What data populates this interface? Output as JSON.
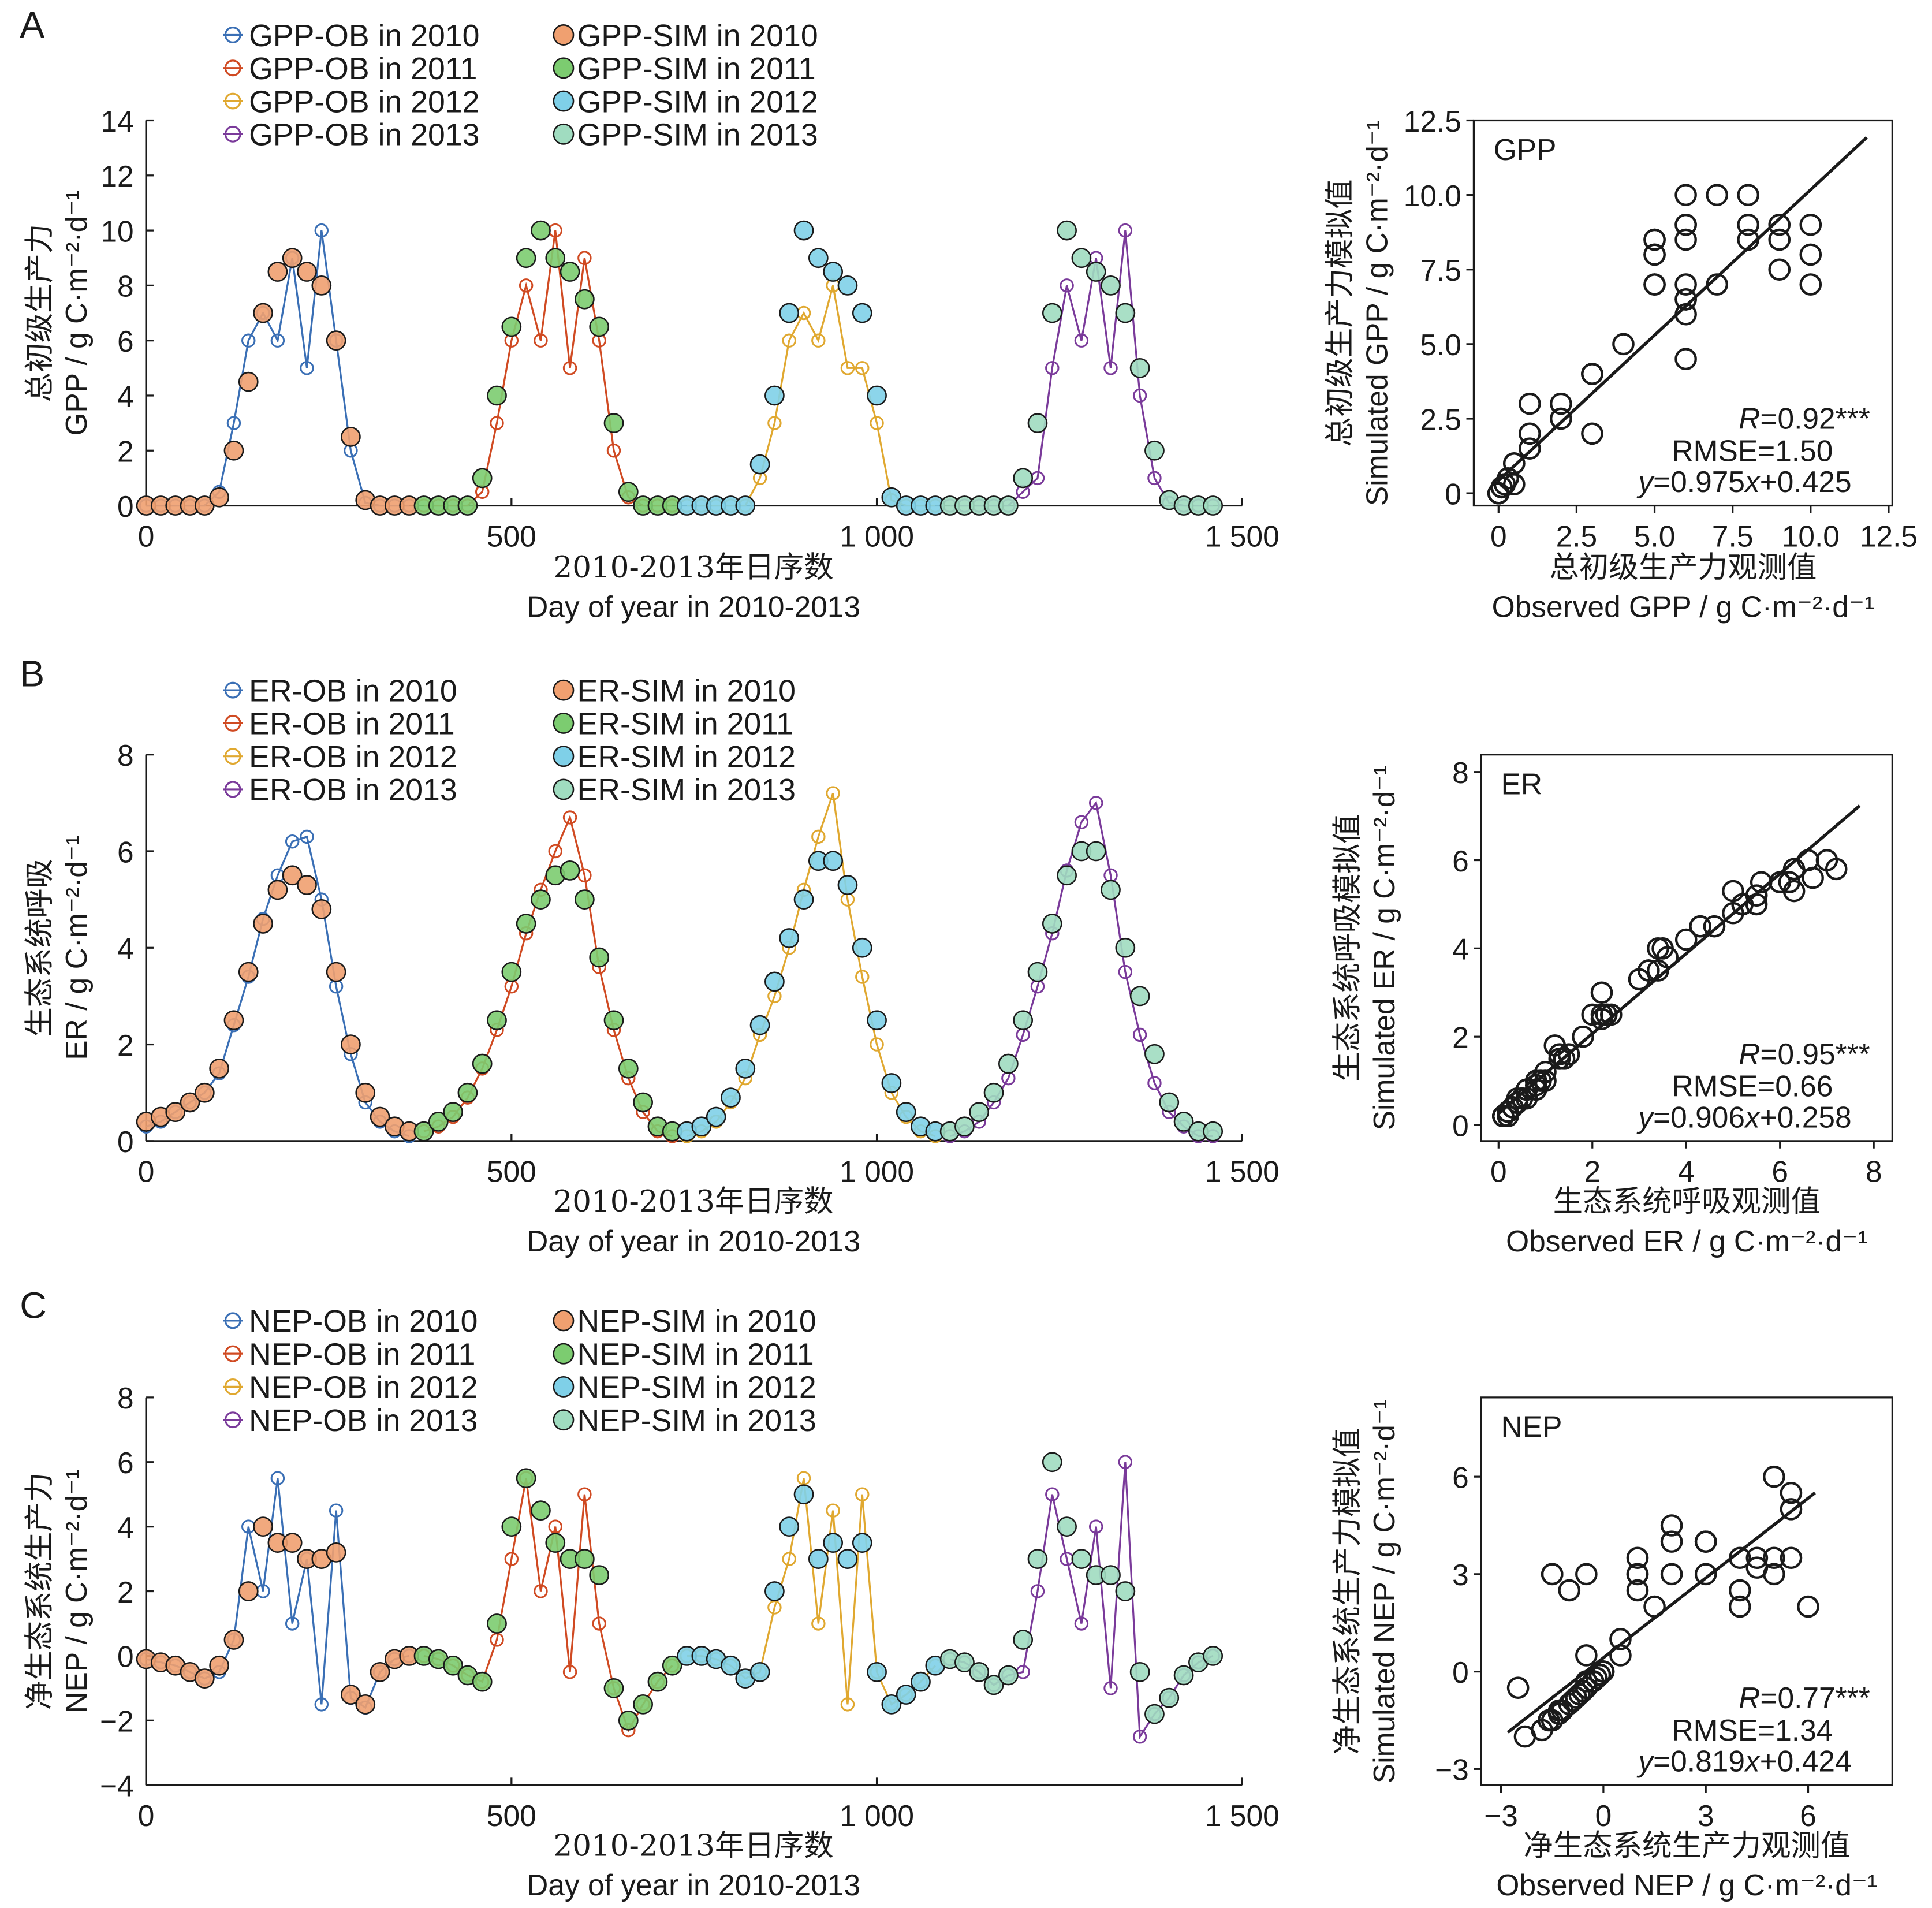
{
  "colors": {
    "ob": [
      "#3a6fb5",
      "#d04a22",
      "#e0a830",
      "#7a3a9a"
    ],
    "sim": [
      "#f0a070",
      "#7ccc70",
      "#7fd0e8",
      "#a0dcc0"
    ],
    "ink": "#1a1a1a"
  },
  "year_breaks": [
    365,
    730,
    1096
  ],
  "chart_data": [
    {
      "type": "line",
      "panel": "A",
      "legend_ob": [
        "GPP-OB in 2010",
        "GPP-OB in 2011",
        "GPP-OB in 2012",
        "GPP-OB in 2013"
      ],
      "legend_sim": [
        "GPP-SIM in 2010",
        "GPP-SIM in 2011",
        "GPP-SIM in 2012",
        "GPP-SIM in 2013"
      ],
      "ylabel_cn": "总初级生产力",
      "ylabel_en": "GPP / g C·m⁻²·d⁻¹",
      "xlabel_cn": "2010-2013年日序数",
      "xlabel_en": "Day of year in 2010-2013",
      "xlim": [
        0,
        1500
      ],
      "ylim": [
        0,
        14
      ],
      "xticks": [
        0,
        500,
        1000,
        1500
      ],
      "xtick_labels": [
        "0",
        "500",
        "1 000",
        "1 500"
      ],
      "yticks": [
        0,
        2,
        4,
        6,
        8,
        10,
        12,
        14
      ],
      "ytick_labels": [
        "0",
        "2",
        "4",
        "6",
        "8",
        "10",
        "12",
        "14"
      ],
      "x_start": 0,
      "x_step": 20,
      "ob": [
        0,
        0,
        0,
        0,
        0,
        0.5,
        3,
        6,
        7,
        6,
        9,
        5,
        10,
        6,
        2,
        0.1,
        0,
        0,
        0,
        0,
        0,
        0,
        0,
        0.5,
        3,
        6,
        8,
        6,
        10,
        5,
        9,
        6,
        2,
        0.3,
        0,
        0,
        0,
        0,
        0,
        0,
        0,
        0,
        1,
        3,
        6,
        7,
        6,
        8,
        5,
        5,
        3,
        0.2,
        0,
        0,
        0,
        0,
        0,
        0,
        0,
        0,
        0.5,
        1,
        5,
        8,
        6,
        9,
        5,
        10,
        4,
        1,
        0.1,
        0,
        0,
        0
      ],
      "sim": [
        0,
        0,
        0,
        0,
        0,
        0.3,
        2,
        4.5,
        7,
        8.5,
        9,
        8.5,
        8,
        6,
        2.5,
        0.2,
        0,
        0,
        0,
        0,
        0,
        0,
        0,
        1,
        4,
        6.5,
        9,
        10,
        9,
        8.5,
        7.5,
        6.5,
        3,
        0.5,
        0,
        0,
        0,
        0,
        0,
        0,
        0,
        0,
        1.5,
        4,
        7,
        10,
        9,
        8.5,
        8,
        7,
        4,
        0.3,
        0,
        0,
        0,
        0,
        0,
        0,
        0,
        0,
        1,
        3,
        7,
        10,
        9,
        8.5,
        8,
        7,
        5,
        2,
        0.2,
        0,
        0,
        0
      ],
      "scatter": {
        "type": "scatter",
        "tag": "GPP",
        "xlabel_cn": "总初级生产力观测值",
        "xlabel_en": "Observed GPP / g C·m⁻²·d⁻¹",
        "ylabel_cn": "总初级生产力模拟值",
        "ylabel_en": "Simulated GPP / g C·m⁻²·d⁻¹",
        "xlim": [
          0,
          12.5
        ],
        "ylim": [
          0,
          12.5
        ],
        "xticks": [
          0,
          2.5,
          5,
          7.5,
          10,
          12.5
        ],
        "xtick_labels": [
          "0",
          "2.5",
          "5.0",
          "7.5",
          "10.0",
          "12.5"
        ],
        "yticks": [
          0,
          2.5,
          5,
          7.5,
          10,
          12.5
        ],
        "ytick_labels": [
          "0",
          "2.5",
          "5.0",
          "7.5",
          "10.0",
          "12.5"
        ],
        "r_text": [
          "R",
          "=0.92***"
        ],
        "rmse_text": "RMSE=1.50",
        "eq_text": [
          "y",
          "=0.975",
          "x",
          "+0.425"
        ],
        "slope": 0.975,
        "intercept": 0.425,
        "fit_range": [
          0,
          11.8
        ]
      }
    },
    {
      "type": "line",
      "panel": "B",
      "legend_ob": [
        "ER-OB in 2010",
        "ER-OB in 2011",
        "ER-OB in 2012",
        "ER-OB in 2013"
      ],
      "legend_sim": [
        "ER-SIM in 2010",
        "ER-SIM in 2011",
        "ER-SIM in 2012",
        "ER-SIM in 2013"
      ],
      "ylabel_cn": "生态系统呼吸",
      "ylabel_en": "ER / g C·m⁻²·d⁻¹",
      "xlabel_cn": "2010-2013年日序数",
      "xlabel_en": "Day of year in 2010-2013",
      "xlim": [
        0,
        1500
      ],
      "ylim": [
        0,
        8
      ],
      "xticks": [
        0,
        500,
        1000,
        1500
      ],
      "xtick_labels": [
        "0",
        "500",
        "1 000",
        "1 500"
      ],
      "yticks": [
        0,
        2,
        4,
        6,
        8
      ],
      "ytick_labels": [
        "0",
        "2",
        "4",
        "6",
        "8"
      ],
      "x_start": 0,
      "x_step": 20,
      "ob": [
        0.3,
        0.4,
        0.6,
        0.8,
        1.0,
        1.4,
        2.4,
        3.4,
        4.6,
        5.5,
        6.2,
        6.3,
        5,
        3.2,
        1.8,
        0.8,
        0.4,
        0.2,
        0.1,
        0.2,
        0.3,
        0.5,
        0.9,
        1.5,
        2.3,
        3.2,
        4.3,
        5.2,
        6,
        6.7,
        5.5,
        3.6,
        2.3,
        1.3,
        0.6,
        0.2,
        0.1,
        0.1,
        0.2,
        0.4,
        0.8,
        1.3,
        2.2,
        3,
        4,
        5.2,
        6.3,
        7.2,
        5,
        3.4,
        2,
        1,
        0.5,
        0.2,
        0.1,
        0.1,
        0.2,
        0.4,
        0.8,
        1.3,
        2.2,
        3.2,
        4.3,
        5.6,
        6.6,
        7,
        5.5,
        3.5,
        2.2,
        1.2,
        0.6,
        0.3,
        0.1,
        0.1
      ],
      "sim": [
        0.4,
        0.5,
        0.6,
        0.8,
        1.0,
        1.5,
        2.5,
        3.5,
        4.5,
        5.2,
        5.5,
        5.3,
        4.8,
        3.5,
        2,
        1,
        0.5,
        0.3,
        0.2,
        0.2,
        0.4,
        0.6,
        1,
        1.6,
        2.5,
        3.5,
        4.5,
        5,
        5.5,
        5.6,
        5,
        3.8,
        2.5,
        1.5,
        0.8,
        0.3,
        0.2,
        0.2,
        0.3,
        0.5,
        0.9,
        1.5,
        2.4,
        3.3,
        4.2,
        5,
        5.8,
        5.8,
        5.3,
        4,
        2.5,
        1.2,
        0.6,
        0.3,
        0.2,
        0.2,
        0.3,
        0.6,
        1,
        1.6,
        2.5,
        3.5,
        4.5,
        5.5,
        6,
        6,
        5.2,
        4,
        3,
        1.8,
        0.8,
        0.4,
        0.2,
        0.2
      ],
      "scatter": {
        "type": "scatter",
        "tag": "ER",
        "xlabel_cn": "生态系统呼吸观测值",
        "xlabel_en": "Observed ER / g C·m⁻²·d⁻¹",
        "ylabel_cn": "生态系统呼吸模拟值",
        "ylabel_en": "Simulated ER / g C·m⁻²·d⁻¹",
        "xlim": [
          0,
          8
        ],
        "ylim": [
          0,
          8
        ],
        "xticks": [
          0,
          2,
          4,
          6,
          8
        ],
        "xtick_labels": [
          "0",
          "2",
          "4",
          "6",
          "8"
        ],
        "yticks": [
          0,
          2,
          4,
          6,
          8
        ],
        "ytick_labels": [
          "0",
          "2",
          "4",
          "6",
          "8"
        ],
        "r_text": [
          "R",
          "=0.95***"
        ],
        "rmse_text": "RMSE=0.66",
        "eq_text": [
          "y",
          "=0.906",
          "x",
          "+0.258"
        ],
        "slope": 0.906,
        "intercept": 0.258,
        "fit_range": [
          0,
          7.7
        ]
      }
    },
    {
      "type": "line",
      "panel": "C",
      "legend_ob": [
        "NEP-OB in 2010",
        "NEP-OB in 2011",
        "NEP-OB in 2012",
        "NEP-OB in 2013"
      ],
      "legend_sim": [
        "NEP-SIM in 2010",
        "NEP-SIM in 2011",
        "NEP-SIM in 2012",
        "NEP-SIM in 2013"
      ],
      "ylabel_cn": "净生态系统生产力",
      "ylabel_en": "NEP / g C·m⁻²·d⁻¹",
      "xlabel_cn": "2010-2013年日序数",
      "xlabel_en": "Day of year in 2010-2013",
      "xlim": [
        0,
        1500
      ],
      "ylim": [
        -4,
        8
      ],
      "xticks": [
        0,
        500,
        1000,
        1500
      ],
      "xtick_labels": [
        "0",
        "500",
        "1 000",
        "1 500"
      ],
      "yticks": [
        -4,
        -2,
        0,
        2,
        4,
        6,
        8
      ],
      "ytick_labels": [
        "−4",
        "−2",
        "0",
        "2",
        "4",
        "6",
        "8"
      ],
      "x_start": 0,
      "x_step": 20,
      "ob": [
        -0.1,
        -0.2,
        -0.3,
        -0.5,
        -0.7,
        -0.5,
        0.5,
        4,
        2,
        5.5,
        1,
        3,
        -1.5,
        4.5,
        -1.3,
        -1.6,
        -0.5,
        -0.1,
        0,
        0,
        -0.1,
        -0.3,
        -0.6,
        -0.8,
        0.5,
        3,
        5.5,
        2,
        4,
        -0.5,
        5,
        1,
        -1,
        -2.3,
        -1.5,
        -0.8,
        -0.3,
        0,
        0,
        -0.1,
        -0.3,
        -0.7,
        -0.5,
        1.5,
        3,
        5.5,
        1,
        4.5,
        -1.5,
        5,
        -0.5,
        -1.5,
        -1.2,
        -0.8,
        -0.3,
        -0.1,
        -0.2,
        -0.5,
        -0.9,
        -0.6,
        -0.5,
        2,
        5,
        3,
        1,
        4,
        -1,
        6,
        -2.5,
        -1.8,
        -1.3,
        -0.6,
        -0.2,
        0
      ],
      "sim": [
        -0.1,
        -0.2,
        -0.3,
        -0.5,
        -0.7,
        -0.3,
        0.5,
        2,
        4,
        3.5,
        3.5,
        3,
        3,
        3.2,
        -1.2,
        -1.5,
        -0.5,
        -0.1,
        0,
        0,
        -0.1,
        -0.3,
        -0.6,
        -0.8,
        1,
        4,
        5.5,
        4.5,
        3.5,
        3,
        3,
        2.5,
        -1,
        -2,
        -1.5,
        -0.8,
        -0.3,
        0,
        0,
        -0.1,
        -0.3,
        -0.7,
        -0.5,
        2,
        4,
        5,
        3,
        3.5,
        3,
        3.5,
        -0.5,
        -1.5,
        -1.2,
        -0.8,
        -0.3,
        -0.1,
        -0.2,
        -0.5,
        -0.9,
        -0.6,
        0.5,
        3,
        6,
        4,
        3,
        2.5,
        2.5,
        2,
        -0.5,
        -1.8,
        -1.3,
        -0.6,
        -0.2,
        0
      ],
      "scatter": {
        "type": "scatter",
        "tag": "NEP",
        "xlabel_cn": "净生态系统生产力观测值",
        "xlabel_en": "Observed NEP / g C·m⁻²·d⁻¹",
        "ylabel_cn": "净生态系统生产力模拟值",
        "ylabel_en": "Simulated NEP / g C·m⁻²·d⁻¹",
        "xlim": [
          -3,
          6
        ],
        "ylim": [
          -3,
          6
        ],
        "xticks": [
          -3,
          0,
          3,
          6
        ],
        "xtick_labels": [
          "−3",
          "0",
          "3",
          "6"
        ],
        "yticks": [
          -3,
          0,
          3,
          6
        ],
        "ytick_labels": [
          "−3",
          "0",
          "3",
          "6"
        ],
        "r_text": [
          "R",
          "=0.77***"
        ],
        "rmse_text": "RMSE=1.34",
        "eq_text": [
          "y",
          "=0.819",
          "x",
          "+0.424"
        ],
        "slope": 0.819,
        "intercept": 0.424,
        "fit_range": [
          -2.8,
          6.2
        ]
      }
    }
  ]
}
